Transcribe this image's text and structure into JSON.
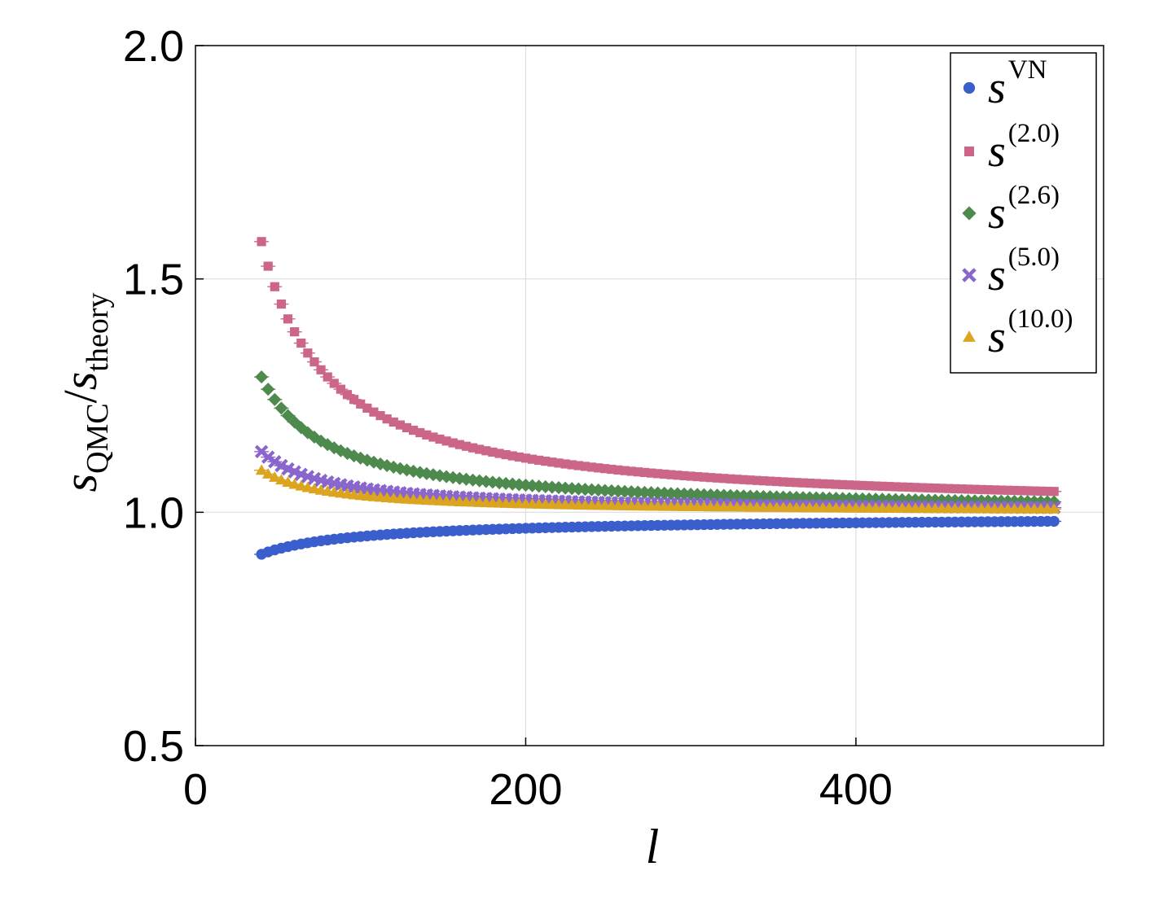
{
  "chart_data": {
    "type": "scatter",
    "xlabel": "l",
    "ylabel": {
      "numerator": "s",
      "numerator_sub": "QMC",
      "separator": "/",
      "denominator": "s",
      "denominator_sub": "theory"
    },
    "xlim": [
      0,
      550
    ],
    "ylim": [
      0.5,
      2.0
    ],
    "xticks": [
      0,
      200,
      400
    ],
    "xtick_labels": [
      "0",
      "200",
      "400"
    ],
    "yticks": [
      0.5,
      1.0,
      1.5,
      2.0
    ],
    "ytick_labels": [
      "0.5",
      "1.0",
      "1.5",
      "2.0"
    ],
    "grid": true,
    "legend_position": "top-right",
    "x_points": {
      "start": 40,
      "end": 520,
      "step": 4
    },
    "series": [
      {
        "name": "s",
        "name_sup": "VN",
        "marker": "circle",
        "color": "#3a5fcd",
        "model": {
          "asymptote": 1.0,
          "coefficient": -0.09,
          "x_ref": 40,
          "exponent": 0.6
        },
        "highlight": [
          [
            40,
            0.91
          ],
          [
            100,
            0.935
          ],
          [
            200,
            0.95
          ],
          [
            300,
            0.958
          ],
          [
            400,
            0.962
          ],
          [
            520,
            0.965
          ]
        ]
      },
      {
        "name": "s",
        "name_sup": "(2.0)",
        "marker": "square",
        "color": "#cc6688",
        "model": {
          "asymptote": 1.0,
          "coefficient": 0.58,
          "x_ref": 40,
          "exponent": 1.0
        },
        "highlight": [
          [
            40,
            1.58
          ],
          [
            44,
            1.49
          ],
          [
            100,
            1.17
          ],
          [
            200,
            1.08
          ],
          [
            300,
            1.05
          ],
          [
            400,
            1.035
          ],
          [
            520,
            1.025
          ]
        ]
      },
      {
        "name": "s",
        "name_sup": "(2.6)",
        "marker": "diamond",
        "color": "#4e8a4e",
        "model": {
          "asymptote": 1.0,
          "coefficient": 0.29,
          "x_ref": 40,
          "exponent": 1.0
        },
        "highlight": [
          [
            40,
            1.29
          ],
          [
            100,
            1.11
          ],
          [
            200,
            1.055
          ],
          [
            300,
            1.035
          ],
          [
            400,
            1.025
          ],
          [
            520,
            1.015
          ]
        ]
      },
      {
        "name": "s",
        "name_sup": "(5.0)",
        "marker": "x",
        "color": "#8866cc",
        "model": {
          "asymptote": 1.0,
          "coefficient": 0.13,
          "x_ref": 40,
          "exponent": 1.0
        },
        "highlight": [
          [
            40,
            1.13
          ],
          [
            100,
            1.045
          ],
          [
            200,
            1.025
          ],
          [
            300,
            1.017
          ],
          [
            400,
            1.013
          ],
          [
            520,
            1.01
          ]
        ]
      },
      {
        "name": "s",
        "name_sup": "(10.0)",
        "marker": "triangle",
        "color": "#dba520",
        "model": {
          "asymptote": 1.0,
          "coefficient": 0.09,
          "x_ref": 40,
          "exponent": 1.0
        },
        "highlight": [
          [
            40,
            1.09
          ],
          [
            100,
            1.03
          ],
          [
            200,
            1.015
          ],
          [
            300,
            1.01
          ],
          [
            400,
            1.008
          ],
          [
            520,
            1.005
          ]
        ]
      }
    ]
  }
}
